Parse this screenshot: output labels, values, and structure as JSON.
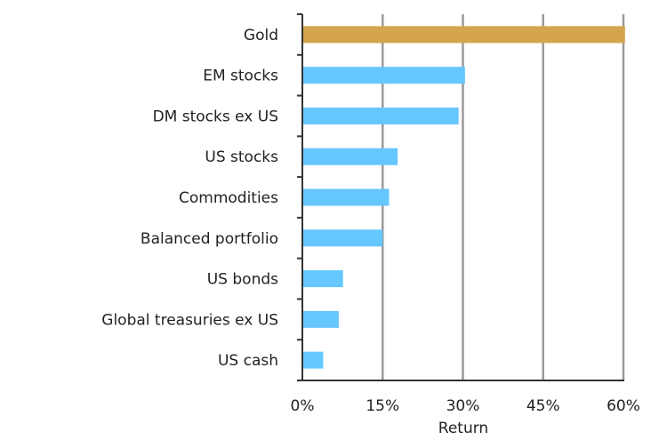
{
  "chart_data": {
    "type": "bar",
    "orientation": "horizontal",
    "title": "",
    "xlabel": "Return",
    "ylabel": "",
    "xlim": [
      0,
      60
    ],
    "xticks": [
      0,
      15,
      30,
      45,
      60
    ],
    "xtick_labels": [
      "0%",
      "15%",
      "30%",
      "45%",
      "60%"
    ],
    "grid": true,
    "categories": [
      "Gold",
      "EM stocks",
      "DM stocks ex US",
      "US stocks",
      "Commodities",
      "Balanced portfolio",
      "US bonds",
      "Global treasuries ex US",
      "US cash"
    ],
    "values": [
      60.3,
      30.4,
      29.2,
      17.8,
      16.2,
      15.0,
      7.6,
      6.8,
      3.9
    ],
    "colors": [
      "#d4a54c",
      "#66c7ff",
      "#66c7ff",
      "#66c7ff",
      "#66c7ff",
      "#66c7ff",
      "#66c7ff",
      "#66c7ff",
      "#66c7ff"
    ],
    "gridline_color": "#9a9a9a",
    "axis_color": "#333333"
  }
}
